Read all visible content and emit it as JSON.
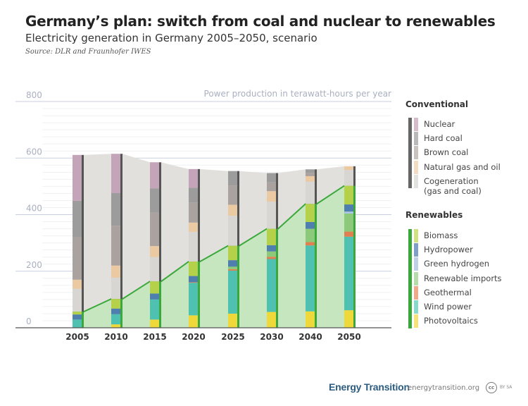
{
  "header": {
    "title": "Germany’s plan: switch from coal and nuclear to renewables",
    "subtitle": "Electricity generation in Germany 2005–2050, scenario",
    "source": "Source: DLR and Fraunhofer IWES"
  },
  "legend": {
    "conventional_heading": "Conventional",
    "conventional": [
      {
        "label": "Nuclear",
        "color": "#d6bccb"
      },
      {
        "label": "Hard coal",
        "color": "#b9b9b9"
      },
      {
        "label": "Brown coal",
        "color": "#c9c3bf"
      },
      {
        "label": "Natural gas and oil",
        "color": "#f2dcc2"
      },
      {
        "label": "Cogeneration",
        "label2": "(gas and coal)",
        "color": "#e3e2df"
      }
    ],
    "renewables_heading": "Renewables",
    "renewables": [
      {
        "label": "Biomass",
        "color": "#cfe182"
      },
      {
        "label": "Hydropower",
        "color": "#7f9fc8"
      },
      {
        "label": "Green hydrogen",
        "color": "#bfd0e6"
      },
      {
        "label": "Renewable imports",
        "color": "#b5dcaa"
      },
      {
        "label": "Geothermal",
        "color": "#eda98a"
      },
      {
        "label": "Wind power",
        "color": "#8ad8cc"
      },
      {
        "label": "Photovoltaics",
        "color": "#f6e27a"
      }
    ]
  },
  "footer": {
    "brand": "Energy Transition",
    "site": "energytransition.org",
    "cc": "cc",
    "license": "BY SA"
  },
  "chart_data": {
    "type": "bar",
    "stacked": true,
    "title": "Germany’s plan: switch from coal and nuclear to renewables",
    "ylabel": "Power production in terawatt-hours per year",
    "ylim": [
      0,
      800
    ],
    "yticks": [
      "0",
      "200",
      "400",
      "600",
      "800"
    ],
    "categories": [
      "2005",
      "2010",
      "2015",
      "2020",
      "2025",
      "2030",
      "2040",
      "2050"
    ],
    "renewable_series": [
      {
        "name": "Photovoltaics",
        "color": "#eed83a",
        "values": [
          1,
          12,
          29,
          44,
          50,
          56,
          58,
          62
        ]
      },
      {
        "name": "Wind power",
        "color": "#4fc1b0",
        "values": [
          28,
          36,
          71,
          115,
          152,
          187,
          233,
          260
        ]
      },
      {
        "name": "Geothermal",
        "color": "#e07f4f",
        "values": [
          0,
          0,
          0,
          2,
          5,
          8,
          12,
          18
        ]
      },
      {
        "name": "Renewable imports",
        "color": "#8cc97a",
        "values": [
          0,
          0,
          0,
          0,
          9,
          19,
          47,
          64
        ]
      },
      {
        "name": "Green hydrogen",
        "color": "#a9c4e0",
        "values": [
          0,
          0,
          0,
          0,
          0,
          0,
          0,
          7
        ]
      },
      {
        "name": "Hydropower",
        "color": "#4f7fae",
        "values": [
          18,
          20,
          21,
          22,
          23,
          22,
          24,
          25
        ]
      },
      {
        "name": "Biomass",
        "color": "#b5d14a",
        "values": [
          10,
          34,
          43,
          51,
          51,
          58,
          64,
          66
        ]
      }
    ],
    "conventional_series": [
      {
        "name": "Cogeneration (gas and coal)",
        "color": "#d8d6d2",
        "values": [
          81,
          75,
          86,
          105,
          106,
          96,
          79,
          56
        ]
      },
      {
        "name": "Natural gas and oil",
        "color": "#ebc9a2",
        "values": [
          32,
          43,
          39,
          33,
          39,
          37,
          19,
          13
        ]
      },
      {
        "name": "Brown coal",
        "color": "#aaa29e",
        "values": [
          150,
          141,
          118,
          71,
          68,
          32,
          12,
          0
        ]
      },
      {
        "name": "Hard coal",
        "color": "#9c9c9c",
        "values": [
          129,
          115,
          86,
          52,
          51,
          32,
          12,
          0
        ]
      },
      {
        "name": "Nuclear",
        "color": "#c4a4b8",
        "values": [
          162,
          139,
          92,
          66,
          0,
          0,
          0,
          0
        ]
      }
    ]
  }
}
